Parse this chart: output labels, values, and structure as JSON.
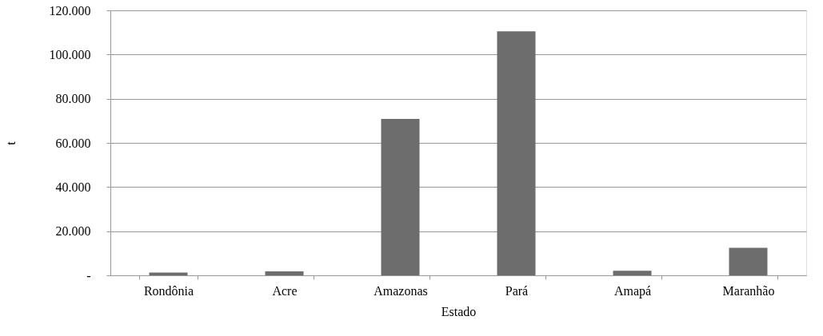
{
  "chart_data": {
    "type": "bar",
    "xlabel": "Estado",
    "ylabel": "t",
    "categories": [
      "Rondônia",
      "Acre",
      "Amazonas",
      "Pará",
      "Amapá",
      "Maranhão"
    ],
    "values": [
      1300,
      1800,
      70800,
      110500,
      2100,
      12500
    ],
    "color": "#6d6d6d",
    "ylim": [
      0,
      120000
    ],
    "yticks": [
      {
        "value": 0,
        "label": "-"
      },
      {
        "value": 20000,
        "label": "20.000"
      },
      {
        "value": 40000,
        "label": "40.000"
      },
      {
        "value": 60000,
        "label": "60.000"
      },
      {
        "value": 80000,
        "label": "80.000"
      },
      {
        "value": 100000,
        "label": "100.000"
      },
      {
        "value": 120000,
        "label": "120.000"
      }
    ],
    "grid": "y"
  }
}
